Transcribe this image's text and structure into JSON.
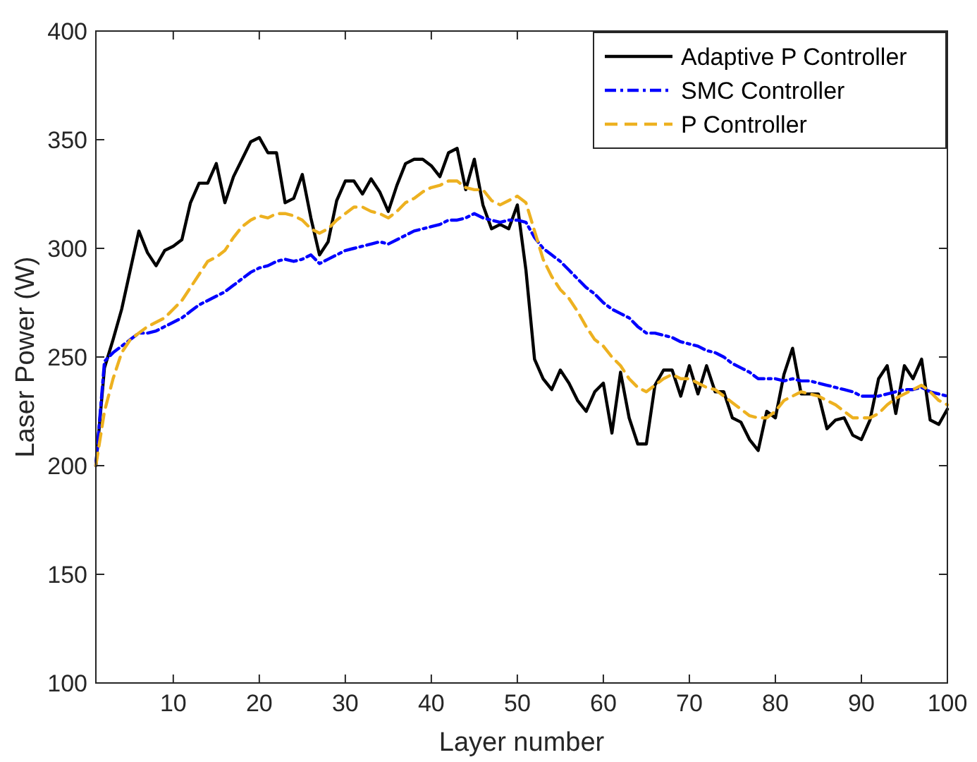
{
  "chart_data": {
    "type": "line",
    "xlabel": "Layer number",
    "ylabel": "Laser Power (W)",
    "xlim": [
      1,
      100
    ],
    "xticks": [
      10,
      20,
      30,
      40,
      50,
      60,
      70,
      80,
      90,
      100
    ],
    "ylim": [
      100,
      400
    ],
    "yticks": [
      100,
      150,
      200,
      250,
      300,
      350,
      400
    ],
    "grid": false,
    "legend": "top right",
    "marker": "none",
    "x": [
      1,
      2,
      3,
      4,
      5,
      6,
      7,
      8,
      9,
      10,
      11,
      12,
      13,
      14,
      15,
      16,
      17,
      18,
      19,
      20,
      21,
      22,
      23,
      24,
      25,
      26,
      27,
      28,
      29,
      30,
      31,
      32,
      33,
      34,
      35,
      36,
      37,
      38,
      39,
      40,
      41,
      42,
      43,
      44,
      45,
      46,
      47,
      48,
      49,
      50,
      51,
      52,
      53,
      54,
      55,
      56,
      57,
      58,
      59,
      60,
      61,
      62,
      63,
      64,
      65,
      66,
      67,
      68,
      69,
      70,
      71,
      72,
      73,
      74,
      75,
      76,
      77,
      78,
      79,
      80,
      81,
      82,
      83,
      84,
      85,
      86,
      87,
      88,
      89,
      90,
      91,
      92,
      93,
      94,
      95,
      96,
      97,
      98,
      99,
      100
    ],
    "series": [
      {
        "name": "Adaptive P Controller",
        "color": "#000000",
        "line_style": "solid",
        "values": [
          200,
          245,
          258,
          272,
          290,
          308,
          298,
          292,
          299,
          301,
          304,
          321,
          330,
          330,
          339,
          321,
          333,
          341,
          349,
          351,
          344,
          344,
          321,
          323,
          334,
          314,
          297,
          303,
          322,
          331,
          331,
          325,
          332,
          326,
          317,
          329,
          339,
          341,
          341,
          338,
          333,
          344,
          346,
          327,
          341,
          320,
          309,
          311,
          309,
          320,
          290,
          249,
          240,
          235,
          244,
          238,
          230,
          225,
          234,
          238,
          215,
          243,
          222,
          210,
          210,
          237,
          244,
          244,
          232,
          246,
          233,
          246,
          234,
          234,
          222,
          220,
          212,
          207,
          225,
          222,
          242,
          254,
          233,
          233,
          233,
          217,
          221,
          222,
          214,
          212,
          221,
          240,
          246,
          224,
          246,
          240,
          249,
          221,
          219,
          226
        ]
      },
      {
        "name": "SMC Controller",
        "color": "#0000ff",
        "line_style": "dashdot",
        "values": [
          200,
          248,
          252,
          255,
          258,
          261,
          261,
          262,
          264,
          266,
          268,
          271,
          274,
          276,
          278,
          280,
          283,
          286,
          289,
          291,
          292,
          294,
          295,
          294,
          295,
          297,
          293,
          295,
          297,
          299,
          300,
          301,
          302,
          303,
          302,
          304,
          306,
          308,
          309,
          310,
          311,
          313,
          313,
          314,
          316,
          314,
          313,
          312,
          313,
          313,
          312,
          305,
          300,
          297,
          294,
          290,
          286,
          282,
          279,
          275,
          272,
          270,
          268,
          264,
          261,
          261,
          260,
          259,
          257,
          256,
          255,
          253,
          252,
          250,
          247,
          245,
          243,
          240,
          240,
          240,
          239,
          240,
          239,
          239,
          238,
          237,
          236,
          235,
          234,
          232,
          232,
          232,
          233,
          234,
          235,
          235,
          236,
          234,
          233,
          232
        ]
      },
      {
        "name": "P Controller",
        "color": "#edb120",
        "line_style": "dashed",
        "values": [
          200,
          225,
          240,
          252,
          258,
          261,
          264,
          266,
          268,
          272,
          276,
          282,
          288,
          294,
          296,
          299,
          305,
          310,
          313,
          315,
          314,
          316,
          316,
          315,
          313,
          309,
          307,
          309,
          313,
          316,
          319,
          319,
          317,
          316,
          314,
          317,
          321,
          323,
          326,
          328,
          329,
          331,
          331,
          328,
          327,
          327,
          322,
          320,
          322,
          324,
          321,
          308,
          295,
          287,
          281,
          277,
          271,
          264,
          258,
          255,
          250,
          246,
          240,
          236,
          234,
          237,
          240,
          242,
          240,
          240,
          238,
          236,
          235,
          232,
          229,
          226,
          223,
          222,
          222,
          225,
          230,
          232,
          234,
          233,
          232,
          230,
          228,
          225,
          222,
          222,
          222,
          224,
          228,
          231,
          233,
          235,
          237,
          234,
          230,
          228
        ]
      }
    ]
  }
}
